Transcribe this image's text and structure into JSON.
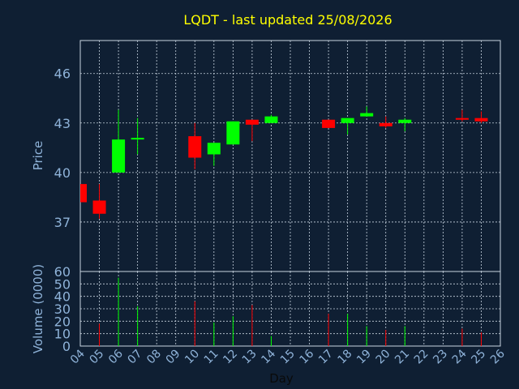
{
  "chart_data": [
    {
      "type": "candlestick",
      "title": "LQDT - last updated 25/08/2026",
      "ylabel": "Price",
      "ylim": [
        34,
        48
      ],
      "yticks": [
        37,
        40,
        43,
        46
      ],
      "grid": true,
      "colors": {
        "up": "#00ff00",
        "down": "#ff0000",
        "title": "#ffff00",
        "axis": "#8fb3d9",
        "background": "#0f1f33"
      },
      "candles": [
        {
          "day": "04",
          "open": 39.3,
          "high": 39.3,
          "low": 38.2,
          "close": 38.2
        },
        {
          "day": "05",
          "open": 38.3,
          "high": 39.3,
          "low": 37.2,
          "close": 37.5
        },
        {
          "day": "06",
          "open": 40.0,
          "high": 43.8,
          "low": 40.0,
          "close": 42.0
        },
        {
          "day": "07",
          "open": 42.0,
          "high": 43.3,
          "low": 41.1,
          "close": 42.1
        },
        {
          "day": "10",
          "open": 42.2,
          "high": 43.0,
          "low": 40.2,
          "close": 40.9
        },
        {
          "day": "11",
          "open": 41.1,
          "high": 41.8,
          "low": 40.4,
          "close": 41.8
        },
        {
          "day": "12",
          "open": 41.7,
          "high": 43.1,
          "low": 41.7,
          "close": 43.1
        },
        {
          "day": "13",
          "open": 43.2,
          "high": 43.2,
          "low": 41.9,
          "close": 42.9
        },
        {
          "day": "14",
          "open": 43.0,
          "high": 43.5,
          "low": 43.0,
          "close": 43.4
        },
        {
          "day": "17",
          "open": 43.2,
          "high": 43.2,
          "low": 42.7,
          "close": 42.7
        },
        {
          "day": "18",
          "open": 43.0,
          "high": 43.3,
          "low": 42.3,
          "close": 43.3
        },
        {
          "day": "19",
          "open": 43.4,
          "high": 44.0,
          "low": 43.4,
          "close": 43.6
        },
        {
          "day": "20",
          "open": 43.0,
          "high": 43.4,
          "low": 42.7,
          "close": 42.8
        },
        {
          "day": "21",
          "open": 43.0,
          "high": 43.3,
          "low": 42.5,
          "close": 43.2
        },
        {
          "day": "24",
          "open": 43.3,
          "high": 43.8,
          "low": 43.1,
          "close": 43.2
        },
        {
          "day": "25",
          "open": 43.3,
          "high": 43.7,
          "low": 43.0,
          "close": 43.1
        }
      ]
    },
    {
      "type": "bar",
      "ylabel": "Volume (0000)",
      "xlabel": "Day",
      "ylim": [
        0,
        60
      ],
      "yticks": [
        0,
        10,
        20,
        30,
        40,
        50,
        60
      ],
      "categories": [
        "04",
        "05",
        "06",
        "07",
        "08",
        "09",
        "10",
        "11",
        "12",
        "13",
        "14",
        "15",
        "16",
        "17",
        "18",
        "19",
        "20",
        "21",
        "22",
        "23",
        "24",
        "25",
        "26"
      ],
      "volumes": [
        {
          "day": "05",
          "value": 18,
          "direction": "down"
        },
        {
          "day": "06",
          "value": 55,
          "direction": "up"
        },
        {
          "day": "07",
          "value": 32,
          "direction": "up"
        },
        {
          "day": "10",
          "value": 36,
          "direction": "down"
        },
        {
          "day": "11",
          "value": 19,
          "direction": "up"
        },
        {
          "day": "12",
          "value": 24,
          "direction": "up"
        },
        {
          "day": "13",
          "value": 33,
          "direction": "down"
        },
        {
          "day": "14",
          "value": 8,
          "direction": "up"
        },
        {
          "day": "17",
          "value": 26,
          "direction": "down"
        },
        {
          "day": "18",
          "value": 26,
          "direction": "up"
        },
        {
          "day": "19",
          "value": 16,
          "direction": "up"
        },
        {
          "day": "20",
          "value": 13,
          "direction": "down"
        },
        {
          "day": "21",
          "value": 16,
          "direction": "up"
        },
        {
          "day": "24",
          "value": 14,
          "direction": "down"
        },
        {
          "day": "25",
          "value": 11,
          "direction": "down"
        }
      ]
    }
  ]
}
